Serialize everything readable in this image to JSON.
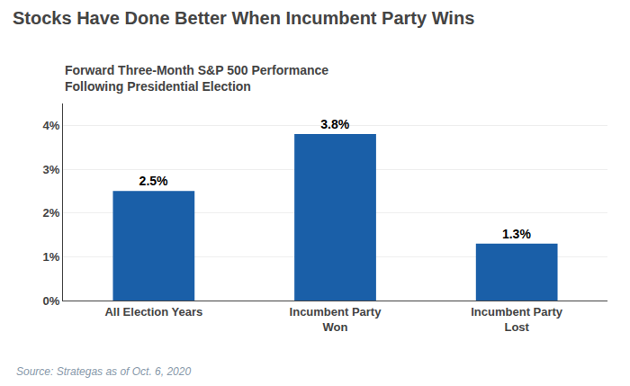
{
  "chart_data": {
    "type": "bar",
    "title": "Stocks Have Done Better When Incumbent Party Wins",
    "subtitle": "Forward Three-Month S&P 500 Performance\nFollowing Presidential Election",
    "source": "Source: Strategas as of Oct. 6, 2020",
    "categories": [
      "All Election Years",
      "Incumbent Party\nWon",
      "Incumbent Party\nLost"
    ],
    "values": [
      2.5,
      3.8,
      1.3
    ],
    "value_labels": [
      "2.5%",
      "3.8%",
      "1.3%"
    ],
    "data_labels": true,
    "color": "#1a5fa8",
    "ylim": [
      0,
      4.5
    ],
    "yticks": [
      {
        "value": 0,
        "label": "0%"
      },
      {
        "value": 1,
        "label": "1%"
      },
      {
        "value": 2,
        "label": "2%"
      },
      {
        "value": 3,
        "label": "3%"
      },
      {
        "value": 4,
        "label": "4%"
      }
    ],
    "grid": true
  }
}
